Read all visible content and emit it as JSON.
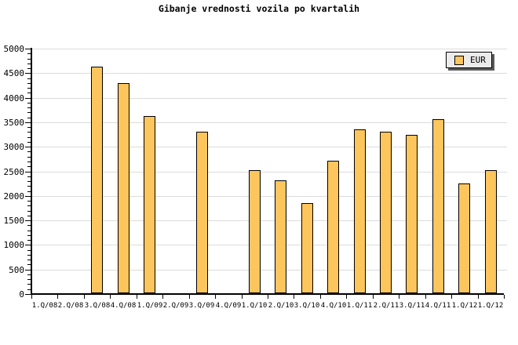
{
  "title": "Gibanje vrednosti vozila po kvartalih",
  "legend": {
    "label": "EUR"
  },
  "colors": {
    "background": "#FFFFFF",
    "bar_fill": "#FCC65D",
    "bar_border": "#000000",
    "gridline": "#DCDCDC",
    "axis": "#000000",
    "text": "#000000",
    "legend_bg": "#EBEBEB",
    "legend_border": "#000000",
    "legend_shadow": "#5A5A5A"
  },
  "chart_data": {
    "type": "bar",
    "title": "Gibanje vrednosti vozila po kvartalih",
    "series_name": "EUR",
    "categories": [
      "1.Q/08",
      "2.Q/08",
      "3.Q/08",
      "4.Q/08",
      "1.Q/09",
      "2.Q/09",
      "3.Q/09",
      "4.Q/09",
      "1.Q/10",
      "2.Q/10",
      "3.Q/10",
      "4.Q/10",
      "1.Q/11",
      "2.Q/11",
      "3.Q/11",
      "4.Q/11",
      "1.Q/12",
      "1.Q/12"
    ],
    "values": [
      null,
      null,
      4630,
      4300,
      3630,
      null,
      3300,
      null,
      2530,
      2320,
      1855,
      2720,
      3350,
      3300,
      3240,
      3560,
      2250,
      2520
    ],
    "xlabel": "",
    "ylabel": "",
    "ylim": [
      0,
      5000
    ],
    "y_major_step": 500,
    "y_minor_step": 100,
    "grid": "horizontal-major",
    "legend_position": "top-right"
  }
}
